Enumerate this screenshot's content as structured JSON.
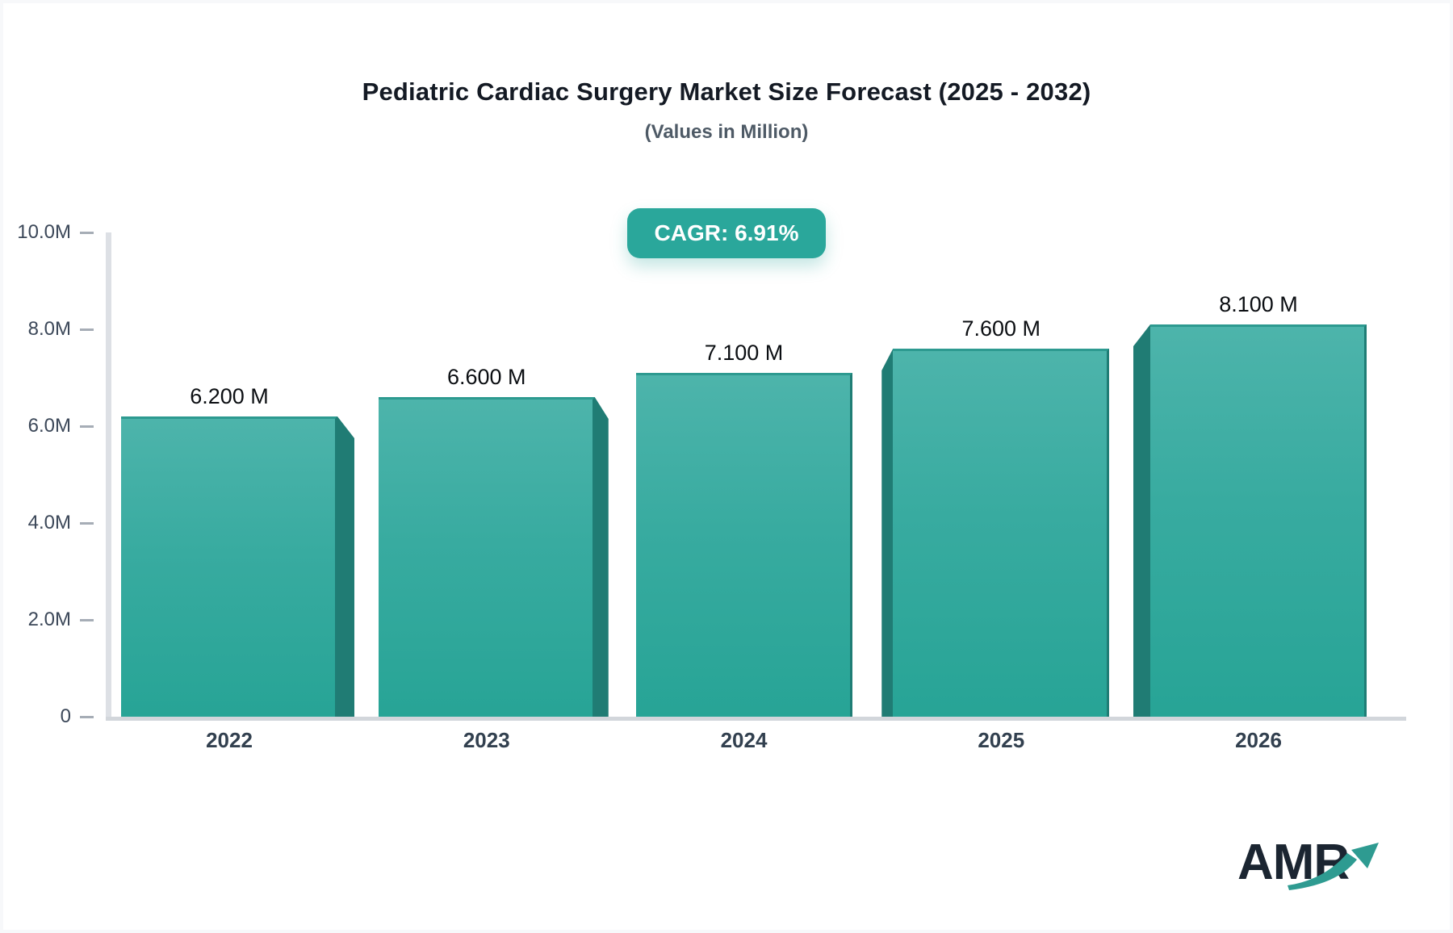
{
  "title": "Pediatric Cardiac Surgery Market Size Forecast (2025 - 2032)",
  "subtitle": "(Values in Million)",
  "badge": {
    "label": "CAGR: 6.91%",
    "bg_color": "#2aa79b",
    "text_color": "#ffffff"
  },
  "logo": {
    "text": "AMR",
    "arrow_color": "#2e9b91",
    "text_color": "#1b2531"
  },
  "chart_data": {
    "type": "bar",
    "title": "Pediatric Cardiac Surgery Market Size Forecast (2025 - 2032)",
    "subtitle": "(Values in Million)",
    "xlabel": "",
    "ylabel": "",
    "categories": [
      "2022",
      "2023",
      "2024",
      "2025",
      "2026"
    ],
    "values": [
      6.2,
      6.6,
      7.1,
      7.6,
      8.1
    ],
    "bar_labels": [
      "6.200 M",
      "6.600 M",
      "7.100 M",
      "7.600 M",
      "8.100 M"
    ],
    "unit": "Million",
    "ylim": [
      0,
      10
    ],
    "y_axis": {
      "ticks": [
        {
          "label": "10.0M",
          "value": 10
        },
        {
          "label": "8.0M",
          "value": 8
        },
        {
          "label": "6.0M",
          "value": 6
        },
        {
          "label": "4.0M",
          "value": 4
        },
        {
          "label": "2.0M",
          "value": 2
        },
        {
          "label": "0",
          "value": 0
        }
      ]
    },
    "grid": false,
    "legend": false,
    "annotations": [
      "CAGR: 6.91%"
    ],
    "bar_color_top": "#4db4ab",
    "bar_color_bottom": "#27a496",
    "bar_side_color": "#207c74"
  }
}
